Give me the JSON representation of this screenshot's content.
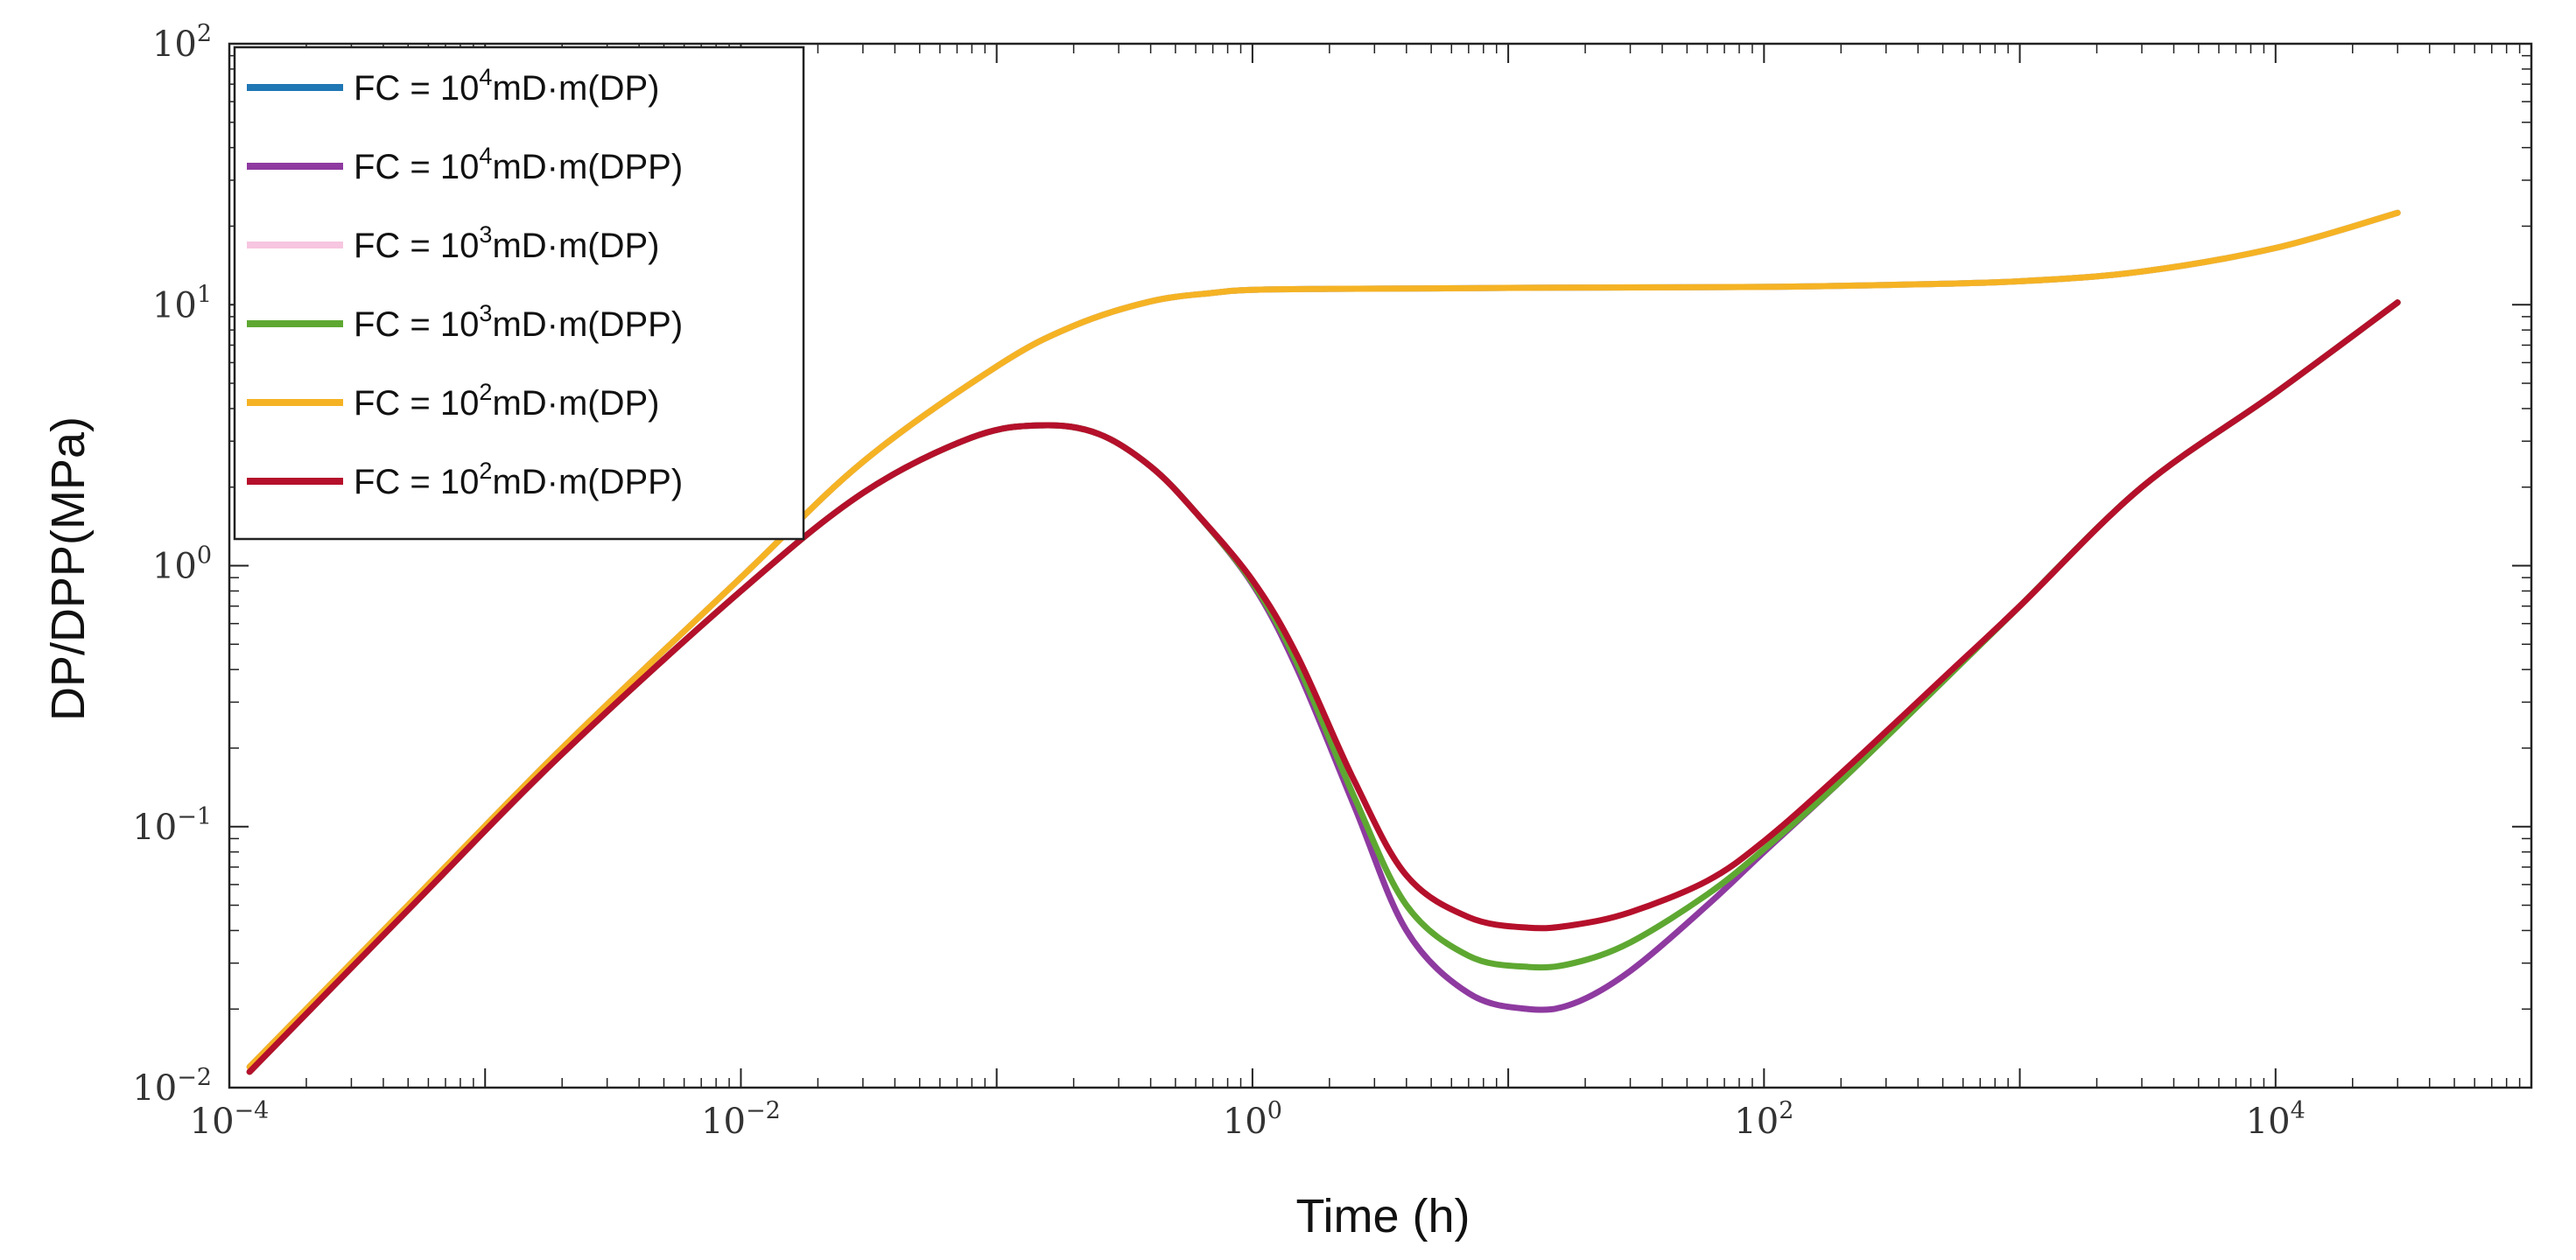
{
  "chart_data": {
    "type": "line",
    "title": "",
    "xlabel": "Time (h)",
    "ylabel": "DP/DPP(MPa)",
    "xscale": "log",
    "yscale": "log",
    "xlim": [
      0.0001,
      100000
    ],
    "ylim": [
      0.01,
      100
    ],
    "x_ticks": [
      {
        "value": 0.0001,
        "base": "10",
        "exp": "−4"
      },
      {
        "value": 0.01,
        "base": "10",
        "exp": "−2"
      },
      {
        "value": 1,
        "base": "10",
        "exp": "0"
      },
      {
        "value": 100,
        "base": "10",
        "exp": "2"
      },
      {
        "value": 10000,
        "base": "10",
        "exp": "4"
      }
    ],
    "y_ticks": [
      {
        "value": 0.01,
        "base": "10",
        "exp": "−2"
      },
      {
        "value": 0.1,
        "base": "10",
        "exp": "−1"
      },
      {
        "value": 1,
        "base": "10",
        "exp": "0"
      },
      {
        "value": 10,
        "base": "10",
        "exp": "1"
      },
      {
        "value": 100,
        "base": "10",
        "exp": "2"
      }
    ],
    "grid": false,
    "legend_position": "top-left",
    "series": [
      {
        "name": "FC = 10^4mD·m(DP)",
        "label": {
          "pre": "FC = 10",
          "exp": "4",
          "post": "mD·m(DP)"
        },
        "color": "#1f77b4",
        "x": [
          0.00012,
          0.0005,
          0.002,
          0.01,
          0.03,
          0.1,
          0.2,
          0.4,
          0.7,
          1,
          2,
          5,
          10,
          30,
          100,
          300,
          1000,
          3000,
          10000,
          30000
        ],
        "y": [
          0.012,
          0.05,
          0.2,
          0.9,
          2.5,
          5.8,
          8.3,
          10.3,
          11.1,
          11.4,
          11.5,
          11.55,
          11.6,
          11.65,
          11.7,
          11.9,
          12.3,
          13.4,
          16.5,
          22.5
        ]
      },
      {
        "name": "FC = 10^4mD·m(DPP)",
        "label": {
          "pre": "FC = 10",
          "exp": "4",
          "post": "mD·m(DPP)"
        },
        "color": "#8e3aa0",
        "x": [
          0.00012,
          0.0005,
          0.002,
          0.01,
          0.03,
          0.08,
          0.15,
          0.25,
          0.4,
          0.6,
          1,
          1.5,
          2.5,
          4,
          7,
          12,
          18,
          30,
          60,
          100,
          200,
          500,
          1000,
          3000,
          10000,
          30000
        ],
        "y": [
          0.0115,
          0.048,
          0.19,
          0.8,
          1.9,
          3.1,
          3.45,
          3.2,
          2.4,
          1.6,
          0.85,
          0.4,
          0.12,
          0.04,
          0.023,
          0.02,
          0.021,
          0.028,
          0.05,
          0.08,
          0.15,
          0.36,
          0.7,
          2.0,
          4.6,
          10.2
        ]
      },
      {
        "name": "FC = 10^3mD·m(DP)",
        "label": {
          "pre": "FC = 10",
          "exp": "3",
          "post": "mD·m(DP)"
        },
        "color": "#f7c6e0",
        "x": [
          0.00012,
          0.0005,
          0.002,
          0.01,
          0.03,
          0.1,
          0.2,
          0.4,
          0.7,
          1,
          2,
          5,
          10,
          30,
          100,
          300,
          1000,
          3000,
          10000,
          30000
        ],
        "y": [
          0.012,
          0.05,
          0.2,
          0.9,
          2.5,
          5.8,
          8.3,
          10.3,
          11.1,
          11.4,
          11.5,
          11.55,
          11.6,
          11.65,
          11.7,
          11.9,
          12.3,
          13.4,
          16.5,
          22.5
        ]
      },
      {
        "name": "FC = 10^3mD·m(DPP)",
        "label": {
          "pre": "FC = 10",
          "exp": "3",
          "post": "mD·m(DPP)"
        },
        "color": "#5ea832",
        "x": [
          0.00012,
          0.0005,
          0.002,
          0.01,
          0.03,
          0.08,
          0.15,
          0.25,
          0.4,
          0.6,
          1,
          1.5,
          2.5,
          4,
          7,
          12,
          18,
          30,
          60,
          100,
          200,
          500,
          1000,
          3000,
          10000,
          30000
        ],
        "y": [
          0.0115,
          0.048,
          0.19,
          0.8,
          1.9,
          3.1,
          3.45,
          3.2,
          2.4,
          1.6,
          0.86,
          0.42,
          0.13,
          0.05,
          0.032,
          0.029,
          0.03,
          0.036,
          0.055,
          0.082,
          0.15,
          0.36,
          0.7,
          2.0,
          4.6,
          10.2
        ]
      },
      {
        "name": "FC = 10^2mD·m(DP)",
        "label": {
          "pre": "FC = 10",
          "exp": "2",
          "post": "mD·m(DP)"
        },
        "color": "#f5b324",
        "x": [
          0.00012,
          0.0005,
          0.002,
          0.01,
          0.03,
          0.1,
          0.2,
          0.4,
          0.7,
          1,
          2,
          5,
          10,
          30,
          100,
          300,
          1000,
          3000,
          10000,
          30000
        ],
        "y": [
          0.012,
          0.05,
          0.2,
          0.9,
          2.5,
          5.8,
          8.3,
          10.3,
          11.1,
          11.4,
          11.5,
          11.55,
          11.6,
          11.65,
          11.7,
          11.9,
          12.3,
          13.4,
          16.5,
          22.5
        ]
      },
      {
        "name": "FC = 10^2mD·m(DPP)",
        "label": {
          "pre": "FC = 10",
          "exp": "2",
          "post": "mD·m(DPP)"
        },
        "color": "#b5102b",
        "x": [
          0.00012,
          0.0005,
          0.002,
          0.01,
          0.03,
          0.08,
          0.15,
          0.25,
          0.4,
          0.6,
          1,
          1.5,
          2.5,
          4,
          7,
          12,
          18,
          30,
          60,
          100,
          200,
          500,
          1000,
          3000,
          10000,
          30000
        ],
        "y": [
          0.0115,
          0.048,
          0.19,
          0.8,
          1.9,
          3.1,
          3.45,
          3.2,
          2.4,
          1.6,
          0.88,
          0.45,
          0.15,
          0.065,
          0.045,
          0.041,
          0.042,
          0.047,
          0.062,
          0.088,
          0.16,
          0.37,
          0.7,
          2.0,
          4.6,
          10.2
        ]
      }
    ]
  }
}
